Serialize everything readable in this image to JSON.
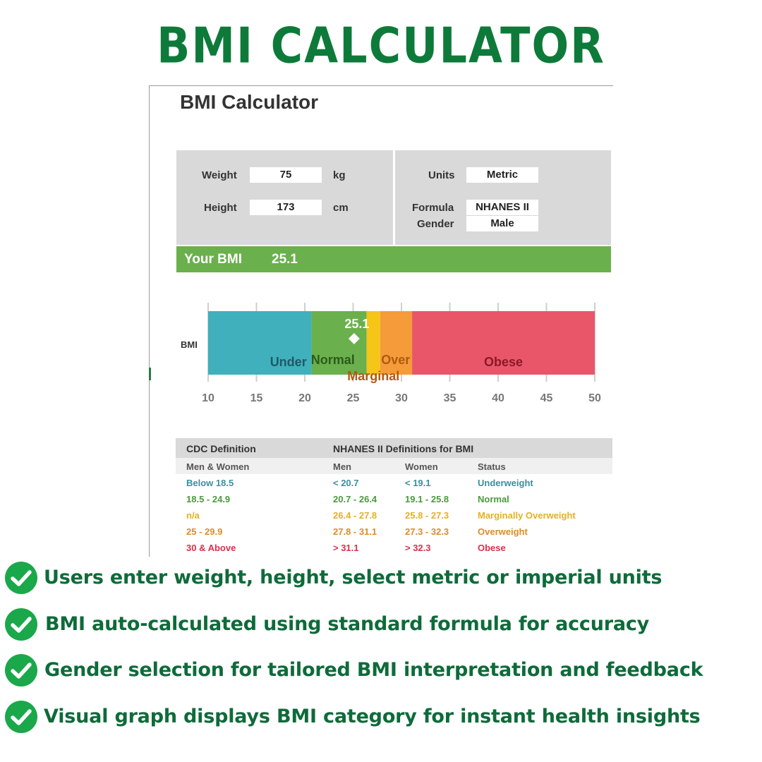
{
  "banner": {
    "title": "BMI CALCULATOR"
  },
  "sheet": {
    "title": "BMI Calculator",
    "inputs": {
      "weight_label": "Weight",
      "weight_value": "75",
      "weight_unit": "kg",
      "height_label": "Height",
      "height_value": "173",
      "height_unit": "cm",
      "units_label": "Units",
      "units_value": "Metric",
      "formula_label": "Formula",
      "formula_value": "NHANES II",
      "gender_label": "Gender",
      "gender_value": "Male"
    },
    "result": {
      "label": "Your BMI",
      "value": "25.1"
    }
  },
  "chart_data": {
    "type": "bar",
    "orientation": "horizontal",
    "row_label": "BMI",
    "xlim": [
      10,
      50
    ],
    "ticks": [
      10,
      15,
      20,
      25,
      30,
      35,
      40,
      45,
      50
    ],
    "segments": [
      {
        "label": "Under",
        "from": 10,
        "to": 20.7,
        "color": "#3fb0bc"
      },
      {
        "label": "Normal",
        "from": 20.7,
        "to": 26.4,
        "color": "#6ab04c"
      },
      {
        "label": "Marginal",
        "from": 26.4,
        "to": 27.8,
        "color": "#f5c518"
      },
      {
        "label": "Over",
        "from": 27.8,
        "to": 31.1,
        "color": "#f59b3a"
      },
      {
        "label": "Obese",
        "from": 31.1,
        "to": 50,
        "color": "#e9566a"
      }
    ],
    "marker": {
      "value": 25.1,
      "label": "25.1"
    }
  },
  "table": {
    "header1": [
      "CDC Definition",
      "NHANES II Definitions for BMI"
    ],
    "header2": [
      "Men & Women",
      "Men",
      "Women",
      "Status"
    ],
    "rows": [
      {
        "cdc": "Below 18.5",
        "men": "< 20.7",
        "women": "< 19.1",
        "status": "Underweight",
        "color": "#3a8fa0"
      },
      {
        "cdc": "18.5 - 24.9",
        "men": "20.7 - 26.4",
        "women": "19.1 - 25.8",
        "status": "Normal",
        "color": "#4a9a3c"
      },
      {
        "cdc": "n/a",
        "men": "26.4 - 27.8",
        "women": "25.8 - 27.3",
        "status": "Marginally Overweight",
        "color": "#e6b020"
      },
      {
        "cdc": "25 - 29.9",
        "men": "27.8 - 31.1",
        "women": "27.3 - 32.3",
        "status": "Overweight",
        "color": "#e08a2a"
      },
      {
        "cdc": "30 & Above",
        "men": "> 31.1",
        "women": "> 32.3",
        "status": "Obese",
        "color": "#d9304a"
      }
    ]
  },
  "features": [
    "Users enter weight, height, select metric or imperial units",
    "BMI auto-calculated using standard formula for accuracy",
    "Gender selection for tailored BMI interpretation and feedback",
    "Visual graph displays BMI category for instant health insights"
  ],
  "colors": {
    "brand_green": "#0e7a3a",
    "bar_green": "#6ab04c",
    "panel_grey": "#d9d9d9"
  }
}
